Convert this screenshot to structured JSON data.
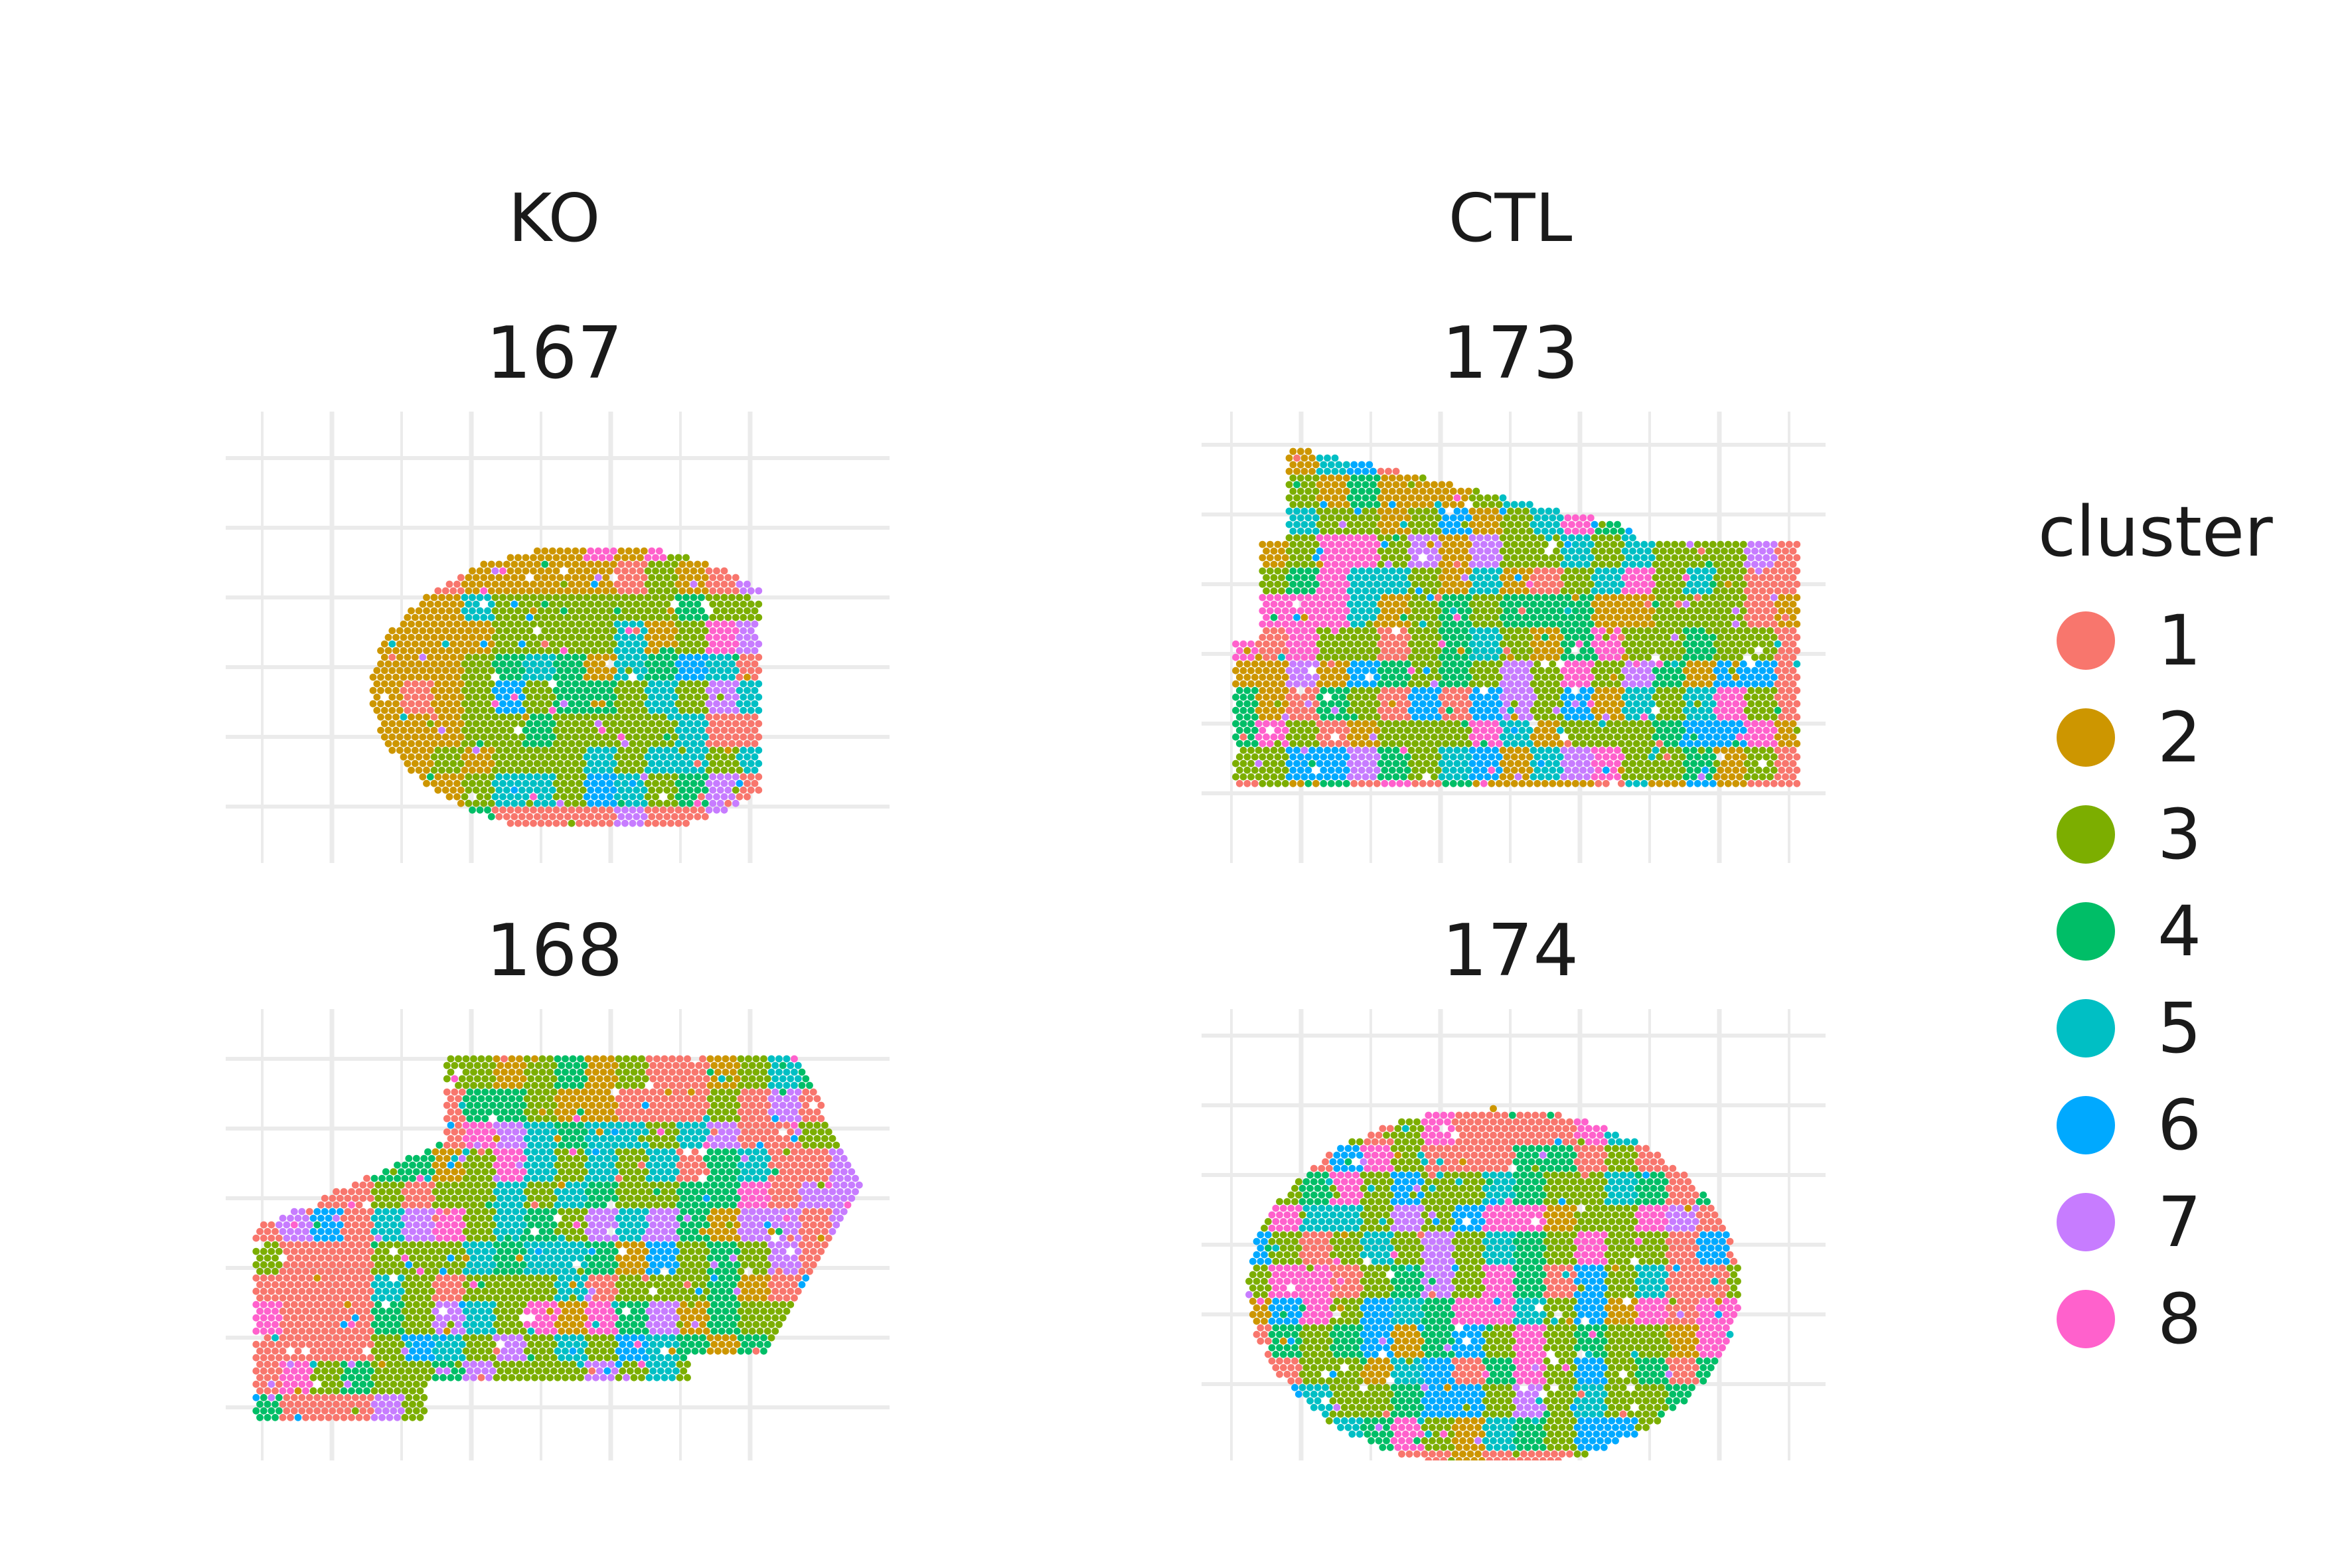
{
  "chart_data": {
    "type": "scatter",
    "description_kind": "spatial transcriptomics spot clusters",
    "legend": {
      "title": "cluster",
      "position": "right",
      "entries": [
        {
          "label": "1",
          "color": "#F8766D"
        },
        {
          "label": "2",
          "color": "#CD9600"
        },
        {
          "label": "3",
          "color": "#7CAE00"
        },
        {
          "label": "4",
          "color": "#00BE67"
        },
        {
          "label": "5",
          "color": "#00BFC4"
        },
        {
          "label": "6",
          "color": "#00A9FF"
        },
        {
          "label": "7",
          "color": "#C77CFF"
        },
        {
          "label": "8",
          "color": "#FF61CC"
        }
      ]
    },
    "groups": [
      {
        "label": "KO"
      },
      {
        "label": "CTL"
      }
    ],
    "panels": [
      {
        "group": "KO",
        "title": "167"
      },
      {
        "group": "KO",
        "title": "168"
      },
      {
        "group": "CTL",
        "title": "173"
      },
      {
        "group": "CTL",
        "title": "174"
      }
    ],
    "grid": true,
    "axes_labels_shown": false
  }
}
